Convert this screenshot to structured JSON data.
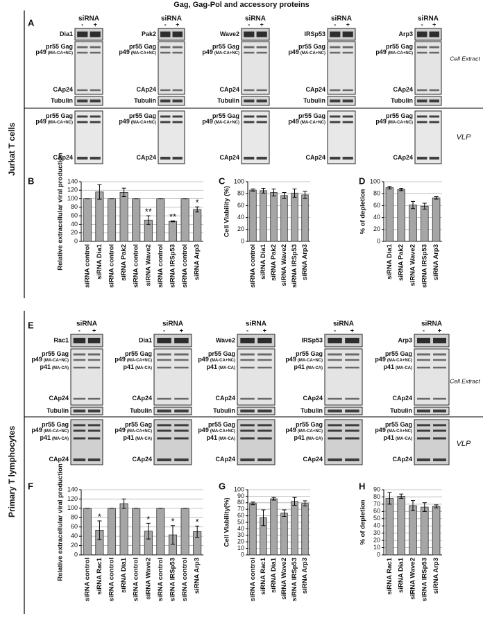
{
  "title": "Gag, Gag-Pol and accessory proteins",
  "panels": [
    "A",
    "B",
    "C",
    "D",
    "E",
    "F",
    "G",
    "H"
  ],
  "sections": [
    {
      "label": "Jurkat T cells",
      "sirna": "siRNA",
      "minus": "-",
      "plus": "+",
      "proteins": [
        "Dia1",
        "Pak2",
        "Wave2",
        "IRSp53",
        "Arp3"
      ],
      "extract_bands": [
        {
          "name": "pr55 Gag"
        },
        {
          "name": "p49",
          "note": "(MA-CA+NC)"
        },
        {
          "name": "CAp24"
        }
      ],
      "tubulin": "Tubulin",
      "vlp_bands": [
        {
          "name": "pr55 Gag"
        },
        {
          "name": "p49",
          "note": "(MA-CA+NC)"
        },
        {
          "name": "CAp24"
        }
      ],
      "extract": "Cell Extract",
      "vlp": "VLP"
    },
    {
      "label": "Primary T lymphocytes",
      "sirna": "siRNA",
      "minus": "-",
      "plus": "+",
      "proteins": [
        "Rac1",
        "Dia1",
        "Wave2",
        "IRSp53",
        "Arp3"
      ],
      "extract_bands": [
        {
          "name": "pr55 Gag"
        },
        {
          "name": "p49",
          "note": "(MA-CA+NC)"
        },
        {
          "name": "p41",
          "note": "(MA-CA)"
        },
        {
          "name": "CAp24"
        }
      ],
      "tubulin": "Tubulin",
      "vlp_bands": [
        {
          "name": "pr55 Gag"
        },
        {
          "name": "p49",
          "note": "(MA-CA+NC)"
        },
        {
          "name": "p41",
          "note": "(MA-CA)"
        },
        {
          "name": "CAp24"
        }
      ],
      "extract": "Cell Extract",
      "vlp": "VLP"
    }
  ],
  "chart_data": [
    {
      "type": "bar",
      "y_label": "Relative extracellular viral production",
      "categories": [
        "siRNA control",
        "siRNA Dia1",
        "siRNA control",
        "siRNA Pak2",
        "siRNA control",
        "siRNA Wave2",
        "siRNA control",
        "siRNA IRSp53",
        "siRNA control",
        "siRNA Arp3"
      ],
      "values": [
        100,
        116,
        100,
        115,
        100,
        50,
        100,
        47,
        100,
        75
      ],
      "errors": [
        0,
        17,
        0,
        10,
        0,
        10,
        0,
        1,
        0,
        6
      ],
      "annotations": [
        null,
        null,
        null,
        null,
        null,
        "**",
        null,
        "**",
        null,
        "*"
      ],
      "color": "#a6a6a6",
      "ylim": [
        0,
        140
      ],
      "yticks": [
        0,
        20,
        40,
        60,
        80,
        100,
        120,
        140
      ],
      "grid": true
    },
    {
      "type": "bar",
      "y_label": "Cell Viability (%)",
      "categories": [
        "siRNA control",
        "siRNA Dia1",
        "siRNA Pak2",
        "siRNA Wave2",
        "siRNA IRSp53",
        "siRNA Arp3"
      ],
      "values": [
        86,
        85,
        82,
        77,
        81,
        78
      ],
      "errors": [
        2,
        4,
        6,
        5,
        7,
        6
      ],
      "color": "#a6a6a6",
      "ylim": [
        0,
        100
      ],
      "yticks": [
        0,
        20,
        40,
        60,
        80,
        100
      ],
      "grid": true
    },
    {
      "type": "bar",
      "y_label": "% of depletion",
      "categories": [
        "siRNA Dia1",
        "siRNA Pak2",
        "siRNA Wave2",
        "siRNA IRSp53",
        "siRNA Arp3"
      ],
      "values": [
        90,
        87,
        61,
        59,
        73
      ],
      "errors": [
        2,
        2,
        6,
        5,
        2
      ],
      "color": "#a6a6a6",
      "ylim": [
        0,
        100
      ],
      "yticks": [
        0,
        20,
        40,
        60,
        80,
        100
      ],
      "grid": true
    },
    {
      "type": "bar",
      "y_label": "Relative extracellular viral production",
      "categories": [
        "siRNA control",
        "siRNA Rac1",
        "siRNA control",
        "siRNA Dia1",
        "siRNA control",
        "siRNA Wave2",
        "siRNA control",
        "siRNA IRSp53",
        "siRNA control",
        "siRNA Arp3"
      ],
      "values": [
        100,
        53,
        100,
        110,
        100,
        51,
        100,
        43,
        100,
        50
      ],
      "errors": [
        0,
        20,
        0,
        10,
        0,
        17,
        0,
        20,
        0,
        12
      ],
      "annotations": [
        null,
        "*",
        null,
        null,
        null,
        "*",
        null,
        "*",
        null,
        "*"
      ],
      "color": "#a6a6a6",
      "ylim": [
        0,
        140
      ],
      "yticks": [
        0,
        20,
        40,
        60,
        80,
        100,
        120,
        140
      ],
      "grid": true
    },
    {
      "type": "bar",
      "y_label": "Cell Viability(%)",
      "categories": [
        "siRNA control",
        "siRNA Rac1",
        "siRNA Dia1",
        "siRNA Wave2",
        "siRNA IRSp53",
        "siRNA Arp3"
      ],
      "values": [
        79,
        57,
        86,
        64,
        82,
        79
      ],
      "errors": [
        2,
        12,
        2,
        5,
        6,
        4
      ],
      "color": "#a6a6a6",
      "ylim": [
        0,
        100
      ],
      "yticks": [
        0,
        10,
        20,
        30,
        40,
        50,
        60,
        70,
        80,
        90,
        100
      ],
      "grid": true
    },
    {
      "type": "bar",
      "y_label": "% of depletion",
      "categories": [
        "siRNA Rac1",
        "siRNA Dia1",
        "siRNA Wave2",
        "siRNA IRSp53",
        "siRNA Arp3"
      ],
      "values": [
        78,
        81,
        68,
        66,
        67
      ],
      "errors": [
        8,
        3,
        7,
        6,
        2
      ],
      "color": "#a6a6a6",
      "ylim": [
        0,
        90
      ],
      "yticks": [
        0,
        10,
        20,
        30,
        40,
        50,
        60,
        70,
        80,
        90
      ],
      "grid": true
    }
  ]
}
